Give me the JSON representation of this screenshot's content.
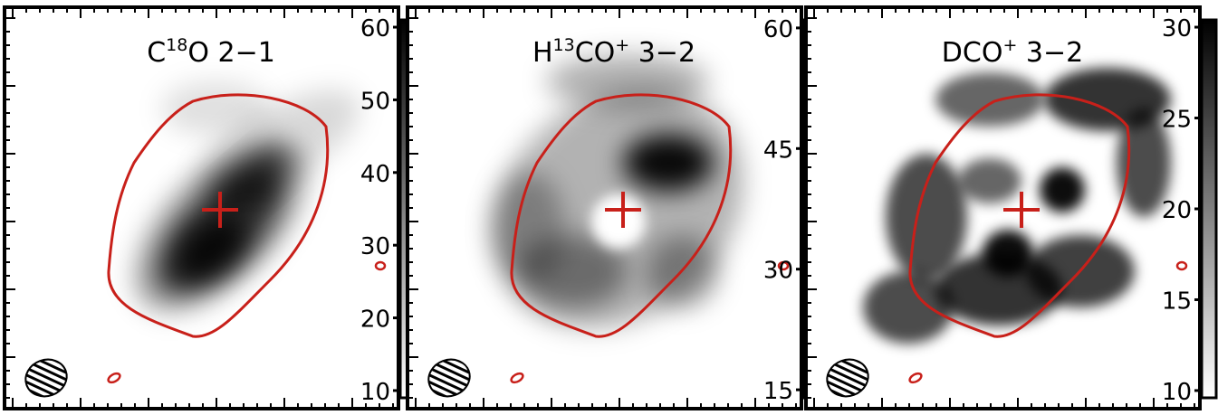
{
  "chart_data": [
    {
      "type": "image",
      "title": [
        "C",
        "18",
        "O 2−1"
      ],
      "clim": [
        9,
        61
      ],
      "cticks": [
        10,
        20,
        30,
        40,
        50,
        60
      ]
    },
    {
      "type": "image",
      "title": [
        "H",
        "13",
        "CO",
        "+",
        " 3−2"
      ],
      "clim": [
        14,
        61
      ],
      "cticks": [
        15,
        30,
        45,
        60
      ]
    },
    {
      "type": "image",
      "title": [
        "DCO",
        "+",
        " 3−2"
      ],
      "clim": [
        9.6,
        30.4
      ],
      "cticks": [
        10,
        15,
        20,
        25,
        30
      ]
    }
  ]
}
